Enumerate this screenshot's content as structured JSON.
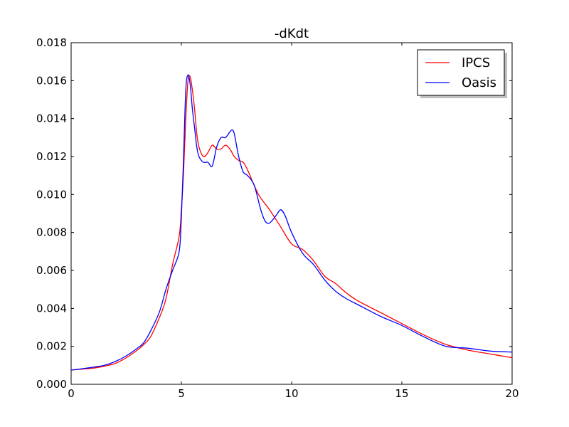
{
  "chart_data": {
    "type": "line",
    "title": "-dKdt",
    "xlabel": "",
    "ylabel": "",
    "xlim": [
      0,
      20
    ],
    "ylim": [
      0,
      0.018
    ],
    "xticks": [
      0,
      5,
      10,
      15,
      20
    ],
    "xtick_labels": [
      "0",
      "5",
      "10",
      "15",
      "20"
    ],
    "yticks": [
      0,
      0.002,
      0.004,
      0.006,
      0.008,
      0.01,
      0.012,
      0.014,
      0.016,
      0.018
    ],
    "ytick_labels": [
      "0.000",
      "0.002",
      "0.004",
      "0.006",
      "0.008",
      "0.010",
      "0.012",
      "0.014",
      "0.016",
      "0.018"
    ],
    "grid": false,
    "legend_position": "top-right",
    "series": [
      {
        "name": "IPCS",
        "color": "#ff0000",
        "x": [
          0,
          0.5,
          1,
          1.5,
          2,
          2.5,
          3,
          3.3,
          3.6,
          4,
          4.3,
          4.6,
          4.9,
          5.0,
          5.1,
          5.2,
          5.3,
          5.4,
          5.5,
          5.6,
          5.7,
          5.8,
          6.0,
          6.2,
          6.4,
          6.6,
          6.8,
          7.0,
          7.2,
          7.4,
          7.6,
          7.8,
          8.0,
          8.5,
          9.0,
          9.5,
          10.0,
          10.5,
          11.0,
          11.5,
          12.0,
          12.5,
          13.0,
          14.0,
          15.0,
          16.0,
          17.0,
          18.0,
          19.0,
          20.0
        ],
        "values": [
          0.00075,
          0.0008,
          0.00085,
          0.00095,
          0.0011,
          0.0014,
          0.0018,
          0.0021,
          0.0025,
          0.0035,
          0.0045,
          0.0063,
          0.0078,
          0.0092,
          0.0112,
          0.014,
          0.016,
          0.0162,
          0.0155,
          0.0145,
          0.0132,
          0.0125,
          0.012,
          0.0122,
          0.0126,
          0.0124,
          0.0124,
          0.0126,
          0.0124,
          0.012,
          0.0118,
          0.0117,
          0.0113,
          0.01,
          0.0092,
          0.0083,
          0.0074,
          0.0071,
          0.0065,
          0.0057,
          0.0053,
          0.0048,
          0.0044,
          0.0038,
          0.0032,
          0.0026,
          0.0021,
          0.0018,
          0.0016,
          0.0014
        ]
      },
      {
        "name": "Oasis",
        "color": "#0000ff",
        "x": [
          0,
          0.5,
          1,
          1.5,
          2,
          2.5,
          3,
          3.3,
          3.6,
          4,
          4.3,
          4.6,
          4.9,
          5.0,
          5.1,
          5.2,
          5.3,
          5.4,
          5.5,
          5.6,
          5.7,
          5.8,
          6.0,
          6.2,
          6.4,
          6.6,
          6.8,
          7.0,
          7.2,
          7.3,
          7.4,
          7.6,
          7.8,
          8.0,
          8.3,
          8.6,
          8.8,
          9.0,
          9.3,
          9.5,
          9.7,
          10.0,
          10.5,
          11.0,
          11.5,
          12.0,
          12.5,
          13.0,
          14.0,
          15.0,
          16.0,
          17.0,
          18.0,
          19.0,
          20.0
        ],
        "values": [
          0.00075,
          0.00082,
          0.0009,
          0.001,
          0.0012,
          0.0015,
          0.0019,
          0.0022,
          0.0028,
          0.0038,
          0.005,
          0.006,
          0.007,
          0.0088,
          0.012,
          0.0155,
          0.0163,
          0.0158,
          0.0145,
          0.0135,
          0.0125,
          0.012,
          0.0117,
          0.0117,
          0.0115,
          0.0125,
          0.013,
          0.013,
          0.0133,
          0.0134,
          0.0132,
          0.012,
          0.0112,
          0.011,
          0.0105,
          0.0092,
          0.0086,
          0.0085,
          0.0089,
          0.0092,
          0.0089,
          0.008,
          0.0069,
          0.0063,
          0.0055,
          0.0049,
          0.0045,
          0.0042,
          0.0036,
          0.0031,
          0.0025,
          0.002,
          0.0019,
          0.00175,
          0.0017
        ]
      }
    ]
  }
}
